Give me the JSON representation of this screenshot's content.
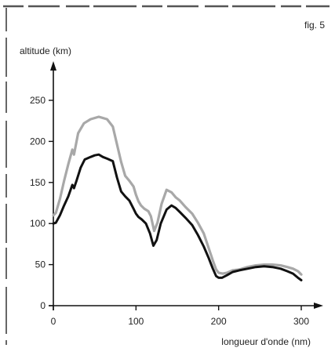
{
  "figure_label": "fig. 5",
  "chart_data": {
    "type": "line",
    "xlabel": "longueur d'onde (nm)",
    "ylabel": "altitude (km)",
    "xlim": [
      0,
      320
    ],
    "ylim": [
      0,
      290
    ],
    "xticks": [
      0,
      100,
      200,
      300
    ],
    "xtick_labels": [
      "0",
      "100",
      "200",
      "300"
    ],
    "yticks": [
      0,
      50,
      100,
      150,
      200,
      250
    ],
    "ytick_labels": [
      "0",
      "50",
      "100",
      "150",
      "200",
      "250"
    ],
    "grid": false,
    "colors": {
      "gray_series": "#a8a8a8",
      "black_series": "#111111",
      "axis": "#111111",
      "frame": "#555555"
    },
    "series": [
      {
        "color_key": "gray_series",
        "x": [
          0,
          3,
          8,
          13,
          18,
          23,
          25,
          30,
          37,
          45,
          55,
          65,
          72,
          78,
          82,
          87,
          92,
          97,
          100,
          103,
          106,
          110,
          115,
          118,
          122,
          126,
          131,
          137,
          143,
          148,
          153,
          160,
          168,
          175,
          182,
          188,
          193,
          197,
          200,
          205,
          210,
          217,
          225,
          235,
          245,
          255,
          265,
          275,
          283,
          290,
          296,
          300
        ],
        "y": [
          110,
          113,
          130,
          152,
          172,
          190,
          184,
          210,
          222,
          227,
          230,
          227,
          218,
          192,
          175,
          158,
          152,
          145,
          135,
          127,
          122,
          118,
          115,
          109,
          91,
          101,
          124,
          141,
          138,
          132,
          128,
          120,
          112,
          101,
          88,
          70,
          55,
          44,
          40,
          39,
          40,
          43,
          44,
          47,
          49,
          50,
          50,
          49,
          47,
          45,
          42,
          38
        ]
      },
      {
        "color_key": "black_series",
        "x": [
          0,
          3,
          8,
          13,
          18,
          23,
          25,
          28,
          33,
          38,
          45,
          50,
          55,
          60,
          65,
          72,
          77,
          82,
          87,
          92,
          97,
          100,
          103,
          107,
          112,
          117,
          121,
          125,
          130,
          137,
          143,
          148,
          153,
          160,
          168,
          175,
          182,
          188,
          193,
          197,
          200,
          204,
          210,
          217,
          225,
          235,
          245,
          255,
          265,
          275,
          283,
          290,
          296,
          300
        ],
        "y": [
          100,
          101,
          110,
          122,
          133,
          147,
          143,
          152,
          168,
          178,
          181,
          183,
          184,
          181,
          179,
          176,
          156,
          139,
          133,
          128,
          118,
          112,
          108,
          105,
          100,
          88,
          73,
          80,
          100,
          117,
          122,
          119,
          114,
          107,
          98,
          86,
          72,
          58,
          45,
          36,
          34,
          34,
          37,
          41,
          43,
          45,
          47,
          48,
          47,
          45,
          42,
          39,
          34,
          31
        ]
      }
    ]
  }
}
